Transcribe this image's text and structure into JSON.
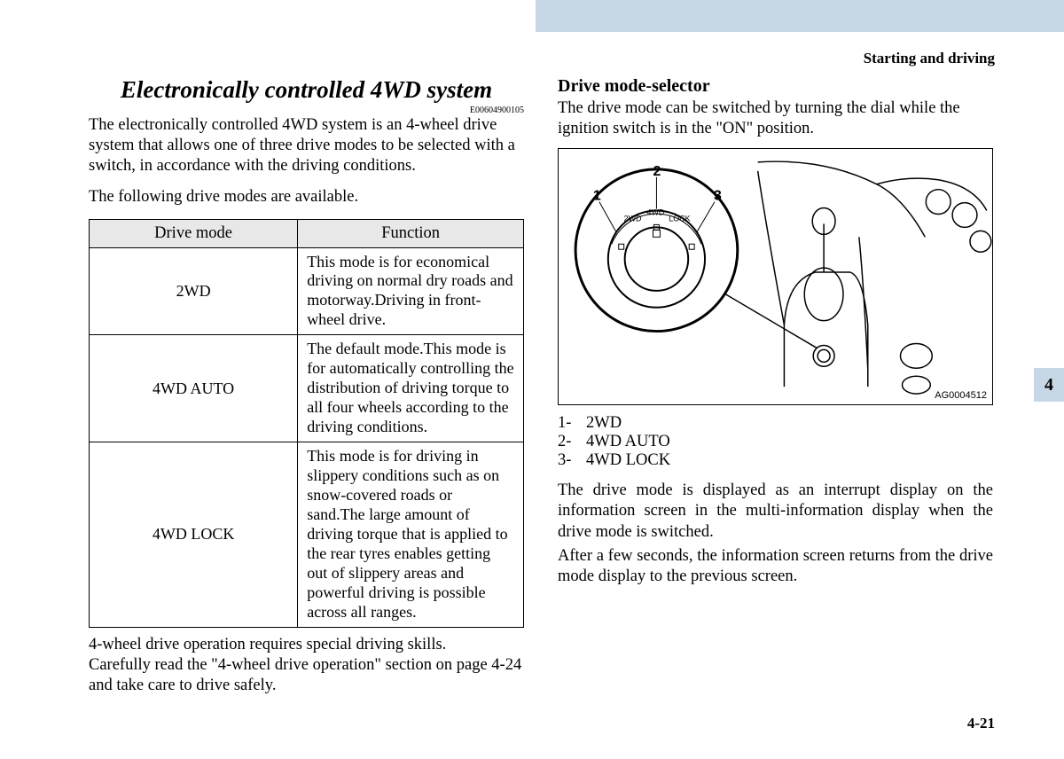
{
  "header": {
    "chapter": "Starting and driving",
    "tab_number": "4",
    "page_number": "4-21"
  },
  "left": {
    "title": "Electronically controlled 4WD system",
    "doc_id": "E00604900105",
    "intro": "The electronically controlled 4WD system is an 4-wheel drive system that allows one of three drive modes to be selected with a switch, in accordance with the driving conditions.",
    "modes_intro": "The following drive modes are available.",
    "table": {
      "header_mode": "Drive mode",
      "header_function": "Function",
      "rows": [
        {
          "mode": "2WD",
          "function": "This mode is for economical driving on normal dry roads and motorway.\nDriving in front-wheel drive."
        },
        {
          "mode": "4WD AUTO",
          "function": "The default mode.\nThis mode is for automatically controlling the distribution of driving torque to all four wheels according to the driving conditions."
        },
        {
          "mode": "4WD LOCK",
          "function": "This mode is for driving in slippery conditions such as on snow-covered roads or sand.\nThe large amount of driving torque that is applied to the rear tyres enables getting out of slippery areas and powerful driving is possible across all ranges."
        }
      ]
    },
    "footnote": "4-wheel drive operation requires special driving skills.\nCarefully read the \"4-wheel drive operation\" section on page 4-24 and take care to drive safely."
  },
  "right": {
    "subtitle": "Drive mode-selector",
    "intro": "The drive mode can be switched by turning the dial while the ignition switch is in the \"ON\" position.",
    "figure_id": "AG0004512",
    "dial_labels": {
      "pos1": "1",
      "pos2": "2",
      "pos3": "3",
      "mode1": "2WD",
      "mode2": "4WD",
      "mode3": "LOCK"
    },
    "legend": [
      {
        "num": "1-",
        "label": "2WD"
      },
      {
        "num": "2-",
        "label": "4WD AUTO"
      },
      {
        "num": "3-",
        "label": "4WD LOCK"
      }
    ],
    "para1": "The drive mode is displayed as an interrupt display on the information screen in the multi-information display when the drive mode is switched.",
    "para2": "After a few seconds, the information screen returns from the drive mode display to the previous screen."
  }
}
